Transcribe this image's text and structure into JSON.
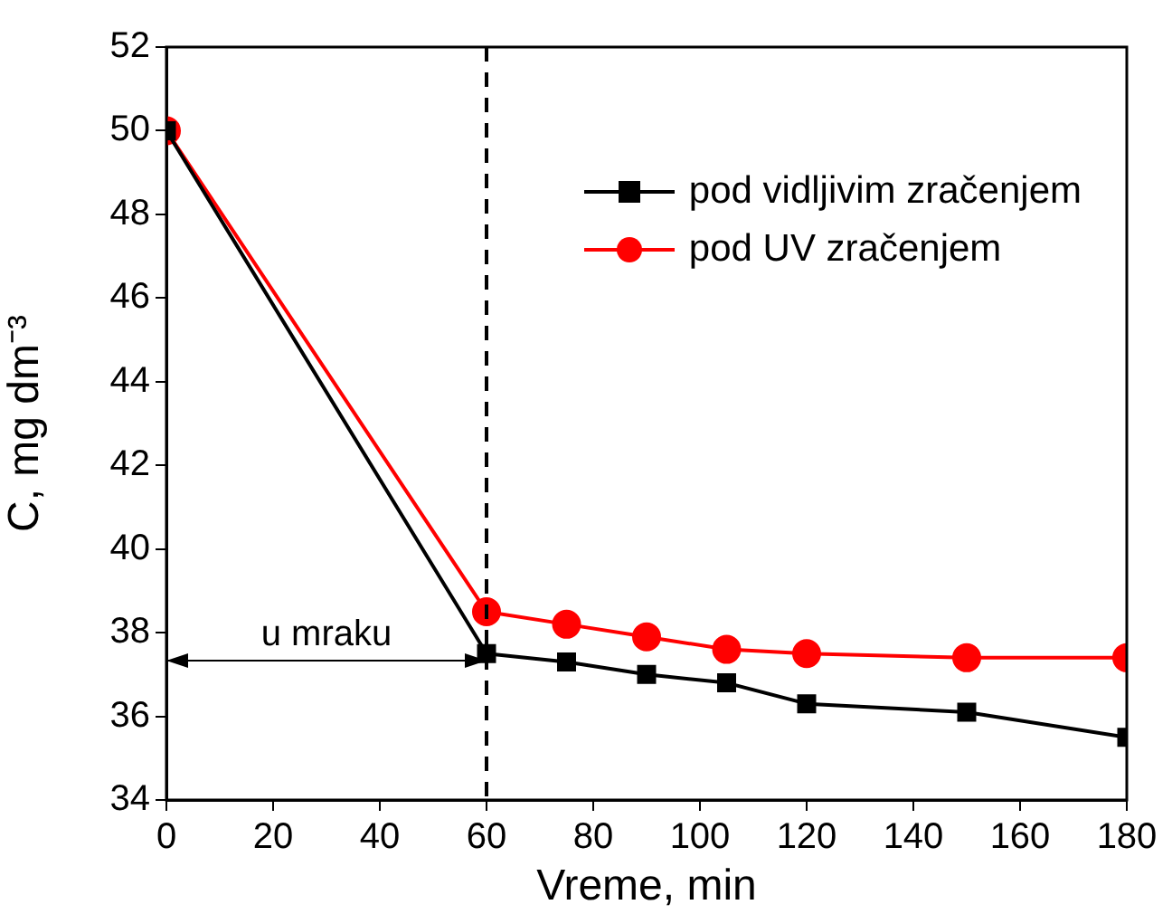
{
  "chart_data": {
    "type": "line",
    "xlabel": "Vreme, min",
    "ylabel": "C, mg dm⁻³",
    "x": [
      0,
      60,
      75,
      90,
      105,
      120,
      150,
      180
    ],
    "series": [
      {
        "name": "pod vidljivim zračenjem",
        "color": "#000000",
        "marker": "square",
        "values": [
          50,
          37.5,
          37.3,
          37.0,
          36.8,
          36.3,
          36.1,
          35.5
        ]
      },
      {
        "name": "pod UV zračenjem",
        "color": "#ff0000",
        "marker": "circle",
        "values": [
          50,
          38.5,
          38.2,
          37.9,
          37.6,
          37.5,
          37.4,
          37.4
        ]
      }
    ],
    "xlim": [
      0,
      180
    ],
    "xticks": [
      0,
      20,
      40,
      60,
      80,
      100,
      120,
      140,
      160,
      180
    ],
    "ylim": [
      34,
      52
    ],
    "yticks": [
      34,
      36,
      38,
      40,
      42,
      44,
      46,
      48,
      50,
      52
    ],
    "ref_lines": [
      {
        "axis": "x",
        "value": 60,
        "line_style": "dashed",
        "color": "#000000"
      }
    ],
    "annotations": [
      "u mraku"
    ],
    "legend": "top right",
    "grid": false,
    "line_style": "solid"
  }
}
